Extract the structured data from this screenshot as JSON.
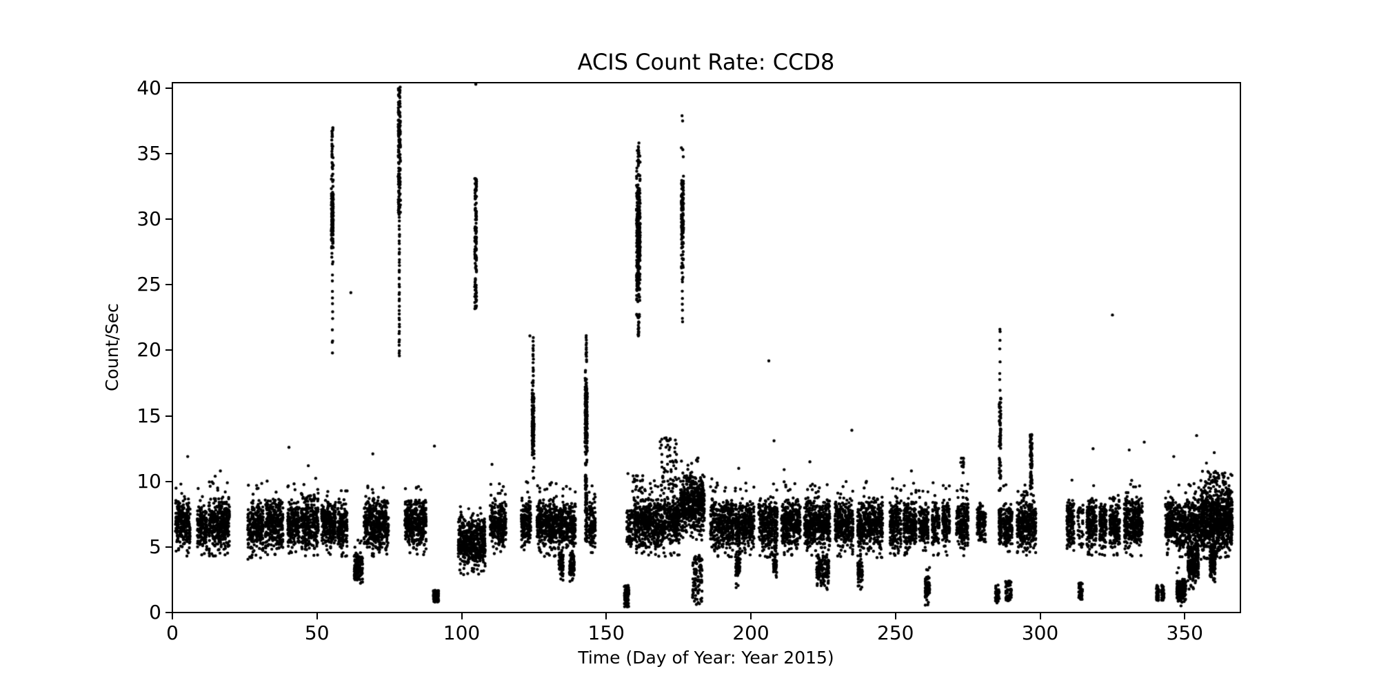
{
  "figure": {
    "title": "ACIS Count Rate: CCD8"
  },
  "chart_data": {
    "type": "scatter",
    "title": "ACIS Count Rate: CCD8",
    "xlabel": "Time (Day of Year: Year 2015)",
    "ylabel": "Count/Sec",
    "xlim": [
      0,
      369
    ],
    "ylim": [
      0,
      40.42
    ],
    "xticks": [
      0,
      50,
      100,
      150,
      200,
      250,
      300,
      350
    ],
    "yticks": [
      0,
      5,
      10,
      15,
      20,
      25,
      30,
      35,
      40
    ],
    "grid": false,
    "legend": null,
    "marker": {
      "color": "#000000",
      "radius_px": 2.2,
      "style": "dot"
    },
    "axis_color": "#000000",
    "background": "#ffffff",
    "clusters_format": "[day_start, day_end, y_min, y_max, n_points, shape] shape: 0=center-peaked band, 1=uniform, 2=sparse vertical chain",
    "clusters": [
      [
        1.0,
        6.2,
        4.6,
        8.9,
        250,
        0
      ],
      [
        8.6,
        12.0,
        4.7,
        8.6,
        160,
        0
      ],
      [
        12.5,
        19.8,
        4.6,
        9.0,
        350,
        0
      ],
      [
        26.0,
        31.5,
        4.4,
        8.8,
        260,
        0
      ],
      [
        32.0,
        38.3,
        4.6,
        9.0,
        300,
        0
      ],
      [
        39.8,
        44.0,
        4.8,
        8.8,
        200,
        0
      ],
      [
        44.5,
        50.5,
        4.6,
        9.2,
        290,
        0
      ],
      [
        51.5,
        56.5,
        4.7,
        8.8,
        240,
        0
      ],
      [
        57.0,
        60.5,
        4.6,
        8.6,
        170,
        0
      ],
      [
        66.2,
        74.8,
        4.5,
        9.0,
        410,
        0
      ],
      [
        80.3,
        87.8,
        4.7,
        8.9,
        360,
        0
      ],
      [
        98.8,
        108.2,
        3.2,
        7.4,
        480,
        0
      ],
      [
        109.8,
        115.4,
        4.7,
        8.8,
        270,
        0
      ],
      [
        120.6,
        124.0,
        5.0,
        8.9,
        160,
        0
      ],
      [
        126.0,
        133.0,
        4.6,
        8.9,
        340,
        0
      ],
      [
        133.2,
        139.4,
        4.9,
        8.6,
        280,
        0
      ],
      [
        133.6,
        135.2,
        2.4,
        5.0,
        70,
        0
      ],
      [
        137.2,
        139.0,
        2.4,
        4.8,
        70,
        0
      ],
      [
        144.0,
        146.3,
        4.8,
        8.6,
        110,
        0
      ],
      [
        157.0,
        159.3,
        5.0,
        7.8,
        60,
        1
      ],
      [
        159.5,
        163.5,
        4.7,
        9.0,
        200,
        0
      ],
      [
        163.5,
        170.5,
        4.6,
        9.0,
        340,
        0
      ],
      [
        170.8,
        175.4,
        4.7,
        9.2,
        220,
        0
      ],
      [
        186.0,
        194.0,
        4.6,
        8.9,
        380,
        0
      ],
      [
        194.5,
        196.5,
        4.7,
        8.6,
        100,
        0
      ],
      [
        196.8,
        201.2,
        4.6,
        8.8,
        210,
        0
      ],
      [
        202.6,
        209.2,
        4.5,
        8.9,
        320,
        0
      ],
      [
        210.5,
        217.2,
        4.6,
        8.9,
        320,
        0
      ],
      [
        218.4,
        227.4,
        4.6,
        9.0,
        430,
        0
      ],
      [
        229.0,
        235.4,
        4.6,
        8.9,
        310,
        0
      ],
      [
        236.8,
        245.6,
        4.5,
        9.0,
        420,
        0
      ],
      [
        248.0,
        252.0,
        4.7,
        8.8,
        190,
        0
      ],
      [
        252.8,
        257.2,
        4.6,
        8.8,
        210,
        0
      ],
      [
        258.0,
        261.4,
        4.8,
        8.6,
        140,
        0
      ],
      [
        262.6,
        265.2,
        4.7,
        8.7,
        120,
        0
      ],
      [
        266.2,
        268.8,
        4.7,
        8.8,
        120,
        0
      ],
      [
        271.0,
        275.2,
        4.6,
        9.0,
        200,
        0
      ],
      [
        278.2,
        281.2,
        4.8,
        8.6,
        120,
        0
      ],
      [
        285.7,
        286.7,
        4.9,
        8.4,
        90,
        0
      ],
      [
        287.2,
        290.4,
        4.7,
        8.7,
        150,
        0
      ],
      [
        292.0,
        296.2,
        4.6,
        8.9,
        220,
        0
      ],
      [
        296.2,
        298.6,
        4.7,
        8.8,
        120,
        0
      ],
      [
        309.2,
        311.8,
        4.8,
        8.7,
        130,
        0
      ],
      [
        313.0,
        315.0,
        4.9,
        8.2,
        40,
        1
      ],
      [
        316.0,
        319.5,
        4.7,
        8.9,
        170,
        0
      ],
      [
        320.5,
        323.0,
        4.7,
        8.8,
        120,
        0
      ],
      [
        324.0,
        327.6,
        4.6,
        8.9,
        170,
        0
      ],
      [
        329.0,
        335.4,
        4.6,
        9.0,
        330,
        0
      ],
      [
        343.3,
        347.0,
        4.6,
        8.9,
        180,
        0
      ],
      [
        347.0,
        350.6,
        4.6,
        8.8,
        180,
        0
      ],
      [
        350.8,
        355.2,
        4.6,
        9.0,
        220,
        0
      ],
      [
        355.5,
        366.5,
        4.4,
        9.6,
        900,
        0
      ],
      [
        62.8,
        65.8,
        2.0,
        4.7,
        140,
        0
      ],
      [
        90.2,
        90.9,
        0.8,
        1.7,
        40,
        1
      ],
      [
        91.4,
        92.1,
        0.8,
        1.7,
        40,
        1
      ],
      [
        156.2,
        157.9,
        0.4,
        2.1,
        70,
        1
      ],
      [
        179.8,
        183.2,
        0.6,
        4.4,
        90,
        1
      ],
      [
        194.6,
        196.4,
        2.0,
        4.9,
        55,
        0
      ],
      [
        207.6,
        209.0,
        2.7,
        4.9,
        45,
        0
      ],
      [
        222.6,
        227.0,
        1.9,
        4.7,
        130,
        0
      ],
      [
        236.9,
        238.6,
        2.1,
        4.6,
        60,
        0
      ],
      [
        260.2,
        261.9,
        0.9,
        3.0,
        80,
        0
      ],
      [
        284.4,
        286.0,
        0.7,
        2.1,
        35,
        1
      ],
      [
        288.0,
        290.2,
        0.8,
        2.4,
        55,
        1
      ],
      [
        313.3,
        314.7,
        1.0,
        2.3,
        50,
        1
      ],
      [
        340.1,
        341.1,
        0.9,
        2.1,
        45,
        1
      ],
      [
        341.9,
        342.9,
        0.9,
        2.1,
        45,
        1
      ],
      [
        347.2,
        350.4,
        0.8,
        2.6,
        170,
        0
      ],
      [
        351.0,
        354.8,
        2.1,
        5.2,
        210,
        0
      ],
      [
        358.7,
        360.6,
        2.2,
        5.6,
        130,
        0
      ],
      [
        54.9,
        55.7,
        26.8,
        33.8,
        120,
        0
      ],
      [
        55.0,
        55.6,
        33.8,
        37.0,
        22,
        1
      ],
      [
        55.2,
        55.5,
        19.5,
        26.8,
        12,
        2
      ],
      [
        78.0,
        78.9,
        30.5,
        40.2,
        150,
        1
      ],
      [
        78.2,
        78.7,
        19.4,
        30.5,
        40,
        2
      ],
      [
        104.5,
        105.2,
        23.0,
        33.2,
        120,
        1
      ],
      [
        124.3,
        125.1,
        10.6,
        17.2,
        130,
        0
      ],
      [
        124.6,
        124.9,
        17.2,
        21.1,
        16,
        2
      ],
      [
        142.6,
        143.5,
        10.5,
        19.4,
        170,
        0
      ],
      [
        142.9,
        143.3,
        19.4,
        21.2,
        10,
        2
      ],
      [
        142.7,
        143.4,
        5.4,
        10.5,
        80,
        1
      ],
      [
        160.4,
        161.8,
        22.8,
        34.2,
        280,
        0
      ],
      [
        160.9,
        161.4,
        34.2,
        36.4,
        14,
        1
      ],
      [
        160.9,
        161.4,
        21.0,
        22.8,
        16,
        1
      ],
      [
        175.9,
        176.8,
        25.8,
        34.5,
        130,
        0
      ],
      [
        176.2,
        176.5,
        21.8,
        25.8,
        8,
        2
      ],
      [
        175.5,
        184.0,
        5.8,
        10.8,
        520,
        0
      ],
      [
        168.5,
        174.8,
        9.2,
        13.4,
        55,
        1
      ],
      [
        159.0,
        164.5,
        9.0,
        10.5,
        20,
        1
      ],
      [
        272.5,
        273.6,
        9.0,
        11.8,
        16,
        1
      ],
      [
        285.8,
        286.5,
        10.2,
        16.4,
        60,
        1
      ],
      [
        286.0,
        286.2,
        16.8,
        21.6,
        7,
        2
      ],
      [
        296.5,
        297.3,
        9.4,
        13.6,
        70,
        1
      ],
      [
        356.0,
        365.0,
        9.0,
        10.8,
        45,
        1
      ]
    ],
    "outlier_points": [
      [
        5.3,
        11.9
      ],
      [
        14.8,
        10.4
      ],
      [
        16.6,
        10.8
      ],
      [
        19.0,
        9.9
      ],
      [
        40.3,
        12.6
      ],
      [
        47.0,
        11.2
      ],
      [
        61.7,
        24.4
      ],
      [
        69.3,
        12.1
      ],
      [
        90.6,
        12.7
      ],
      [
        104.9,
        40.3
      ],
      [
        110.5,
        11.3
      ],
      [
        123.6,
        21.1
      ],
      [
        130.5,
        9.8
      ],
      [
        157.5,
        10.6
      ],
      [
        170.2,
        13.3
      ],
      [
        172.0,
        12.6
      ],
      [
        174.0,
        11.6
      ],
      [
        176.2,
        37.9
      ],
      [
        176.4,
        37.5
      ],
      [
        186.5,
        10.2
      ],
      [
        195.8,
        11.0
      ],
      [
        206.2,
        19.2
      ],
      [
        208.0,
        13.1
      ],
      [
        211.5,
        10.9
      ],
      [
        220.4,
        11.5
      ],
      [
        234.9,
        13.9
      ],
      [
        249.0,
        10.2
      ],
      [
        255.5,
        10.8
      ],
      [
        263.0,
        9.9
      ],
      [
        286.1,
        21.6
      ],
      [
        297.0,
        13.5
      ],
      [
        311.0,
        10.1
      ],
      [
        318.3,
        12.5
      ],
      [
        325.0,
        22.7
      ],
      [
        330.8,
        12.4
      ],
      [
        336.0,
        13.0
      ],
      [
        346.2,
        11.9
      ],
      [
        354.1,
        13.5
      ],
      [
        357.5,
        11.4
      ],
      [
        360.2,
        12.2
      ],
      [
        363.0,
        10.6
      ]
    ]
  }
}
